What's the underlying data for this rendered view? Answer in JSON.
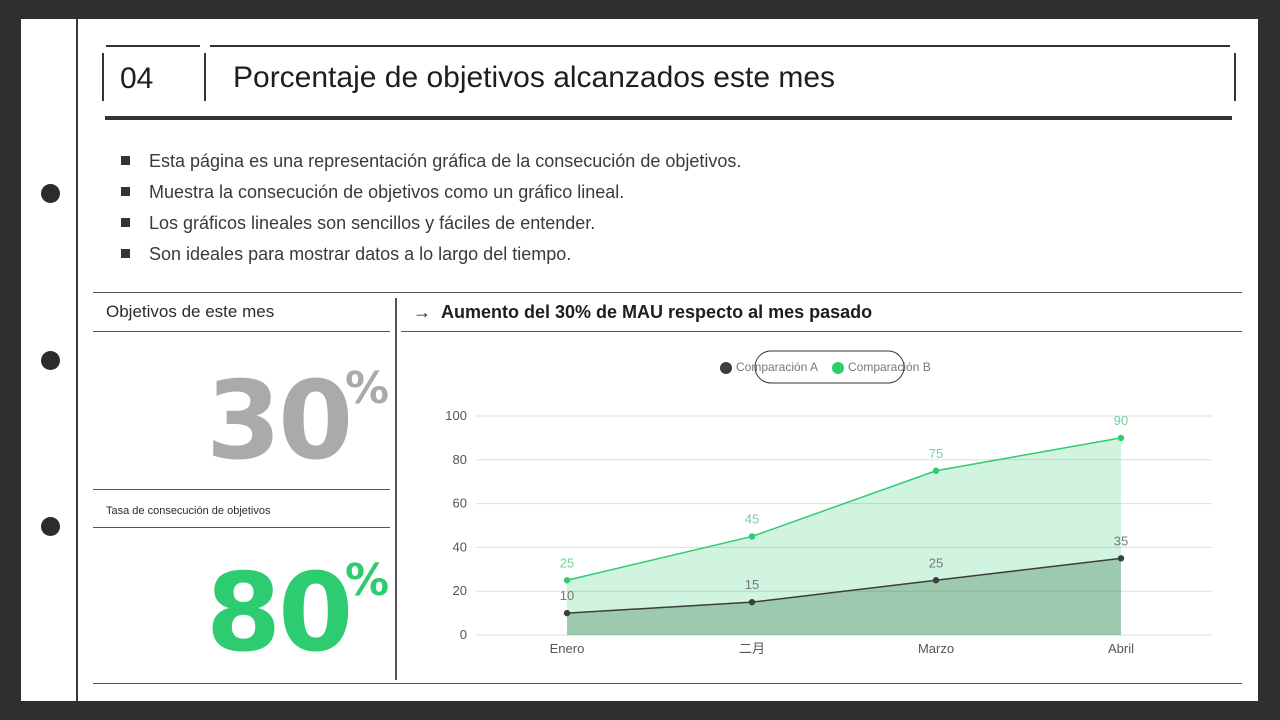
{
  "slide": {
    "number": "04",
    "title": "Porcentaje de objetivos alcanzados este mes"
  },
  "bullets": [
    "Esta página es una representación gráfica de la consecución de objetivos.",
    "Muestra la consecución de objetivos como un gráfico lineal.",
    "Los gráficos lineales son sencillos y fáciles de entender.",
    "Son ideales para mostrar datos a lo largo del tiempo."
  ],
  "left_panel": {
    "month_label": "Objetivos de este mes",
    "month_value": "30",
    "month_unit": "%",
    "rate_label": "Tasa de consecución de objetivos",
    "rate_value": "80",
    "rate_unit": "%"
  },
  "chart_panel": {
    "arrow": "→",
    "heading": "Aumento del 30% de MAU respecto al mes pasado"
  },
  "colors": {
    "accent_green": "#2ecc71",
    "dark_series": "#3d3d3d",
    "gray_number": "#aaaaaa"
  },
  "chart_data": {
    "type": "area",
    "categories": [
      "Enero",
      "二月",
      "Marzo",
      "Abril"
    ],
    "ylim": [
      0,
      100
    ],
    "yticks": [
      0,
      20,
      40,
      60,
      80,
      100
    ],
    "grid": true,
    "legend_position": "top-center",
    "series": [
      {
        "name": "Comparación A",
        "values": [
          10,
          15,
          25,
          35
        ],
        "color": "#3d3d3d"
      },
      {
        "name": "Comparación B",
        "values": [
          25,
          45,
          75,
          90
        ],
        "color": "#2ecc71"
      }
    ]
  }
}
